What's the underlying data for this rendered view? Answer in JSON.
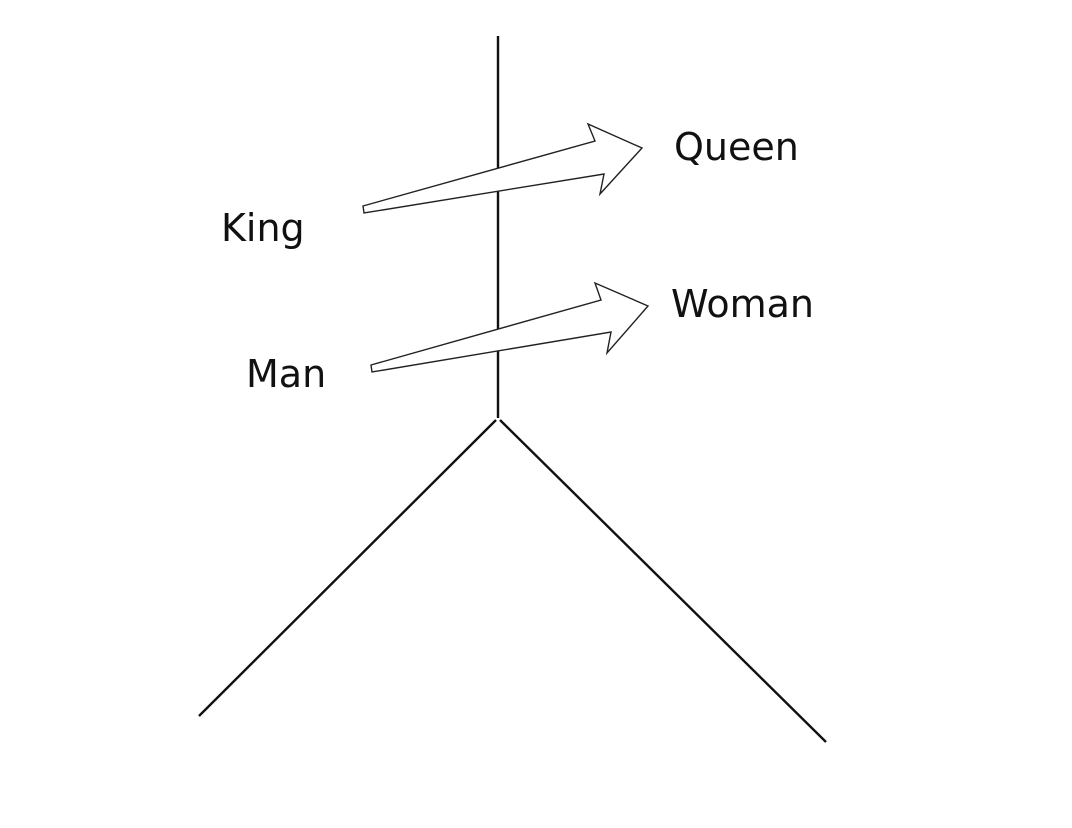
{
  "labels": {
    "king": "King",
    "queen": "Queen",
    "man": "Man",
    "woman": "Woman"
  },
  "colors": {
    "line": "#111111",
    "arrow_stroke": "#222222",
    "background": "#ffffff"
  }
}
